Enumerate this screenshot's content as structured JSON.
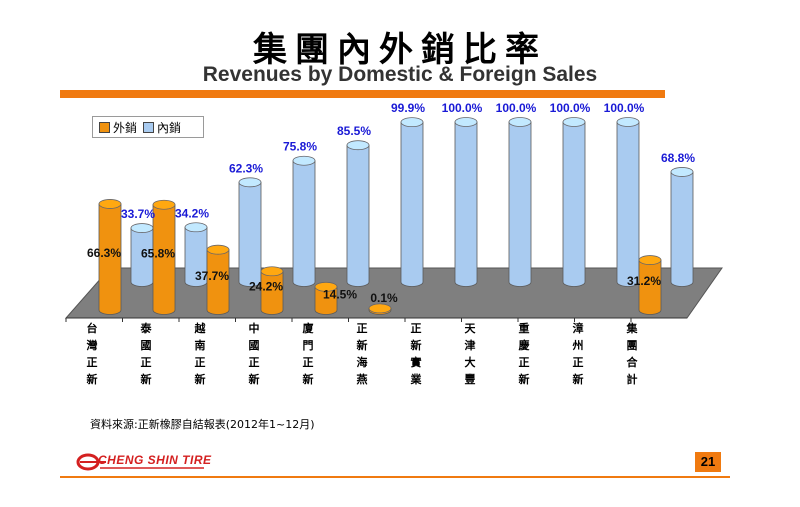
{
  "header": {
    "title_zh": "集團內外銷比率",
    "title_en": "Revenues by Domestic & Foreign Sales"
  },
  "legend": {
    "foreign_label": "外銷",
    "domestic_label": "內銷"
  },
  "colors": {
    "foreign": "#f0920f",
    "domestic": "#a9cbf0",
    "accent": "#f07a10",
    "label_blue": "#1a1ad6",
    "floor": "#7f7f7f"
  },
  "chart_data": {
    "type": "bar",
    "categories": [
      "台灣正新",
      "泰國正新",
      "越南正新",
      "中國正新",
      "廈門正新",
      "正新海燕",
      "正新實業",
      "天津大豐",
      "重慶正新",
      "漳州正新",
      "集團合計"
    ],
    "series": [
      {
        "name": "外銷",
        "values": [
          66.3,
          65.8,
          37.7,
          24.2,
          14.5,
          0.1,
          null,
          null,
          null,
          null,
          31.2
        ],
        "labels": [
          "66.3%",
          "65.8%",
          "37.7%",
          "24.2%",
          "14.5%",
          "0.1%",
          "",
          "",
          "",
          "",
          "31.2%"
        ]
      },
      {
        "name": "內銷",
        "values": [
          33.7,
          34.2,
          62.3,
          75.8,
          85.5,
          99.9,
          100.0,
          100.0,
          100.0,
          100.0,
          68.8
        ],
        "labels": [
          "33.7%",
          "34.2%",
          "62.3%",
          "75.8%",
          "85.5%",
          "99.9%",
          "100.0%",
          "100.0%",
          "100.0%",
          "100.0%",
          "68.8%"
        ]
      }
    ],
    "unit": "%",
    "ylim": [
      0,
      100
    ]
  },
  "footer": {
    "source": "資料來源:正新橡膠自結報表(2012年1~12月)",
    "logo_text": "CHENG SHIN TIRE",
    "page_number": "21"
  }
}
